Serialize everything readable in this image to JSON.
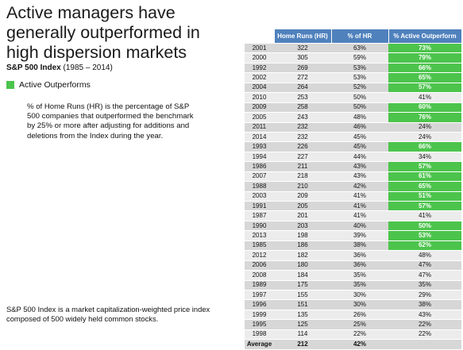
{
  "title": "Active managers have generally outperformed in high dispersion markets",
  "subtitle_bold": "S&P 500 Index",
  "subtitle_rest": " (1985 – 2014)",
  "legend_label": "Active Outperforms",
  "legend_color": "#4cc44c",
  "description": "% of Home Runs (HR) is the percentage of S&P 500 companies that outperformed the benchmark by 25% or more after adjusting for additions and deletions from the Index during the year.",
  "footnote": "S&P 500 Index is a market capitalization-weighted price index composed of 500 widely held common stocks.",
  "table": {
    "headers": [
      "Home Runs (HR)",
      "% of HR",
      "% Active Outperform"
    ],
    "header_color": "#4f81bd",
    "rows": [
      {
        "year": "2001",
        "hr": "322",
        "pct": "63%",
        "out": "73%",
        "green": true
      },
      {
        "year": "2000",
        "hr": "305",
        "pct": "59%",
        "out": "79%",
        "green": true
      },
      {
        "year": "1992",
        "hr": "269",
        "pct": "53%",
        "out": "66%",
        "green": true
      },
      {
        "year": "2002",
        "hr": "272",
        "pct": "53%",
        "out": "65%",
        "green": true
      },
      {
        "year": "2004",
        "hr": "264",
        "pct": "52%",
        "out": "57%",
        "green": true
      },
      {
        "year": "2010",
        "hr": "253",
        "pct": "50%",
        "out": "41%",
        "green": false
      },
      {
        "year": "2009",
        "hr": "258",
        "pct": "50%",
        "out": "60%",
        "green": true
      },
      {
        "year": "2005",
        "hr": "243",
        "pct": "48%",
        "out": "76%",
        "green": true
      },
      {
        "year": "2011",
        "hr": "232",
        "pct": "46%",
        "out": "24%",
        "green": false
      },
      {
        "year": "2014",
        "hr": "232",
        "pct": "45%",
        "out": "24%",
        "green": false
      },
      {
        "year": "1993",
        "hr": "226",
        "pct": "45%",
        "out": "66%",
        "green": true
      },
      {
        "year": "1994",
        "hr": "227",
        "pct": "44%",
        "out": "34%",
        "green": false
      },
      {
        "year": "1986",
        "hr": "211",
        "pct": "43%",
        "out": "57%",
        "green": true
      },
      {
        "year": "2007",
        "hr": "218",
        "pct": "43%",
        "out": "61%",
        "green": true
      },
      {
        "year": "1988",
        "hr": "210",
        "pct": "42%",
        "out": "65%",
        "green": true
      },
      {
        "year": "2003",
        "hr": "209",
        "pct": "41%",
        "out": "51%",
        "green": true
      },
      {
        "year": "1991",
        "hr": "205",
        "pct": "41%",
        "out": "57%",
        "green": true
      },
      {
        "year": "1987",
        "hr": "201",
        "pct": "41%",
        "out": "41%",
        "green": false
      },
      {
        "year": "1990",
        "hr": "203",
        "pct": "40%",
        "out": "50%",
        "green": true
      },
      {
        "year": "2013",
        "hr": "198",
        "pct": "39%",
        "out": "53%",
        "green": true
      },
      {
        "year": "1985",
        "hr": "186",
        "pct": "38%",
        "out": "62%",
        "green": true
      },
      {
        "year": "2012",
        "hr": "182",
        "pct": "36%",
        "out": "48%",
        "green": false
      },
      {
        "year": "2006",
        "hr": "180",
        "pct": "36%",
        "out": "47%",
        "green": false
      },
      {
        "year": "2008",
        "hr": "184",
        "pct": "35%",
        "out": "47%",
        "green": false
      },
      {
        "year": "1989",
        "hr": "175",
        "pct": "35%",
        "out": "35%",
        "green": false
      },
      {
        "year": "1997",
        "hr": "155",
        "pct": "30%",
        "out": "29%",
        "green": false
      },
      {
        "year": "1996",
        "hr": "151",
        "pct": "30%",
        "out": "38%",
        "green": false
      },
      {
        "year": "1999",
        "hr": "135",
        "pct": "26%",
        "out": "43%",
        "green": false
      },
      {
        "year": "1995",
        "hr": "125",
        "pct": "25%",
        "out": "22%",
        "green": false
      },
      {
        "year": "1998",
        "hr": "114",
        "pct": "22%",
        "out": "22%",
        "green": false
      }
    ],
    "average": {
      "label": "Average",
      "hr": "212",
      "pct": "42%",
      "out": ""
    }
  }
}
